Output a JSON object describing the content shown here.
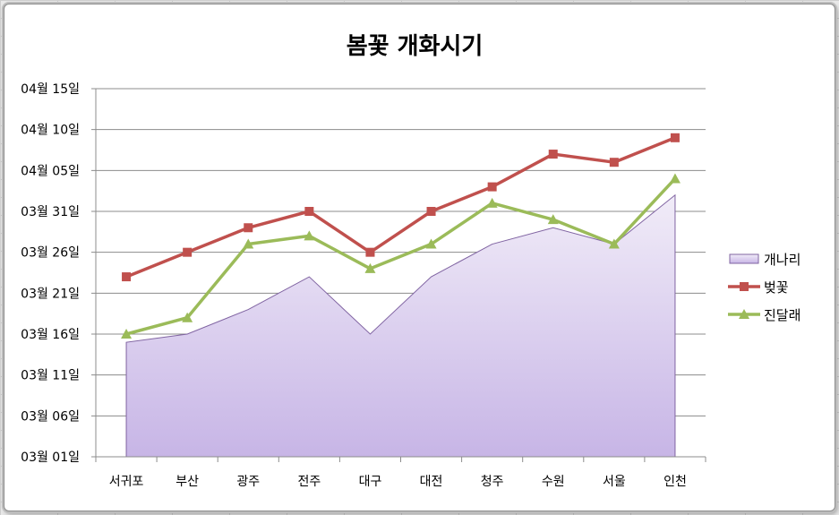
{
  "chart_data": {
    "type": "line",
    "title": "봄꽃 개화시기",
    "categories": [
      "서귀포",
      "부산",
      "광주",
      "전주",
      "대구",
      "대전",
      "청주",
      "수원",
      "서울",
      "인천"
    ],
    "y_tick_labels": [
      "03월 01일",
      "03월 06일",
      "03월 11일",
      "03월 16일",
      "03월 21일",
      "03월 26일",
      "03월 31일",
      "04월 05일",
      "04월 10일",
      "04월 15일"
    ],
    "ylim": [
      "03월 01일",
      "04월 15일"
    ],
    "grid": true,
    "legend_position": "right",
    "series": [
      {
        "name": "개나리",
        "render": "area",
        "color": "#c9b7e6",
        "values": [
          "03월 15일",
          "03월 16일",
          "03월 19일",
          "03월 23일",
          "03월 16일",
          "03월 23일",
          "03월 27일",
          "03월 29일",
          "03월 27일",
          "04월 02일"
        ]
      },
      {
        "name": "벚꽃",
        "render": "line",
        "marker": "square",
        "color": "#c0504d",
        "values": [
          "03월 23일",
          "03월 26일",
          "03월 29일",
          "03월 31일",
          "03월 26일",
          "03월 31일",
          "04월 03일",
          "04월 07일",
          "04월 06일",
          "04월 09일"
        ]
      },
      {
        "name": "진달래",
        "render": "line",
        "marker": "triangle",
        "color": "#9bbb59",
        "values": [
          "03월 16일",
          "03월 18일",
          "03월 27일",
          "03월 28일",
          "03월 24일",
          "03월 27일",
          "04월 01일",
          "03월 30일",
          "03월 27일",
          "04월 04일"
        ]
      }
    ]
  }
}
